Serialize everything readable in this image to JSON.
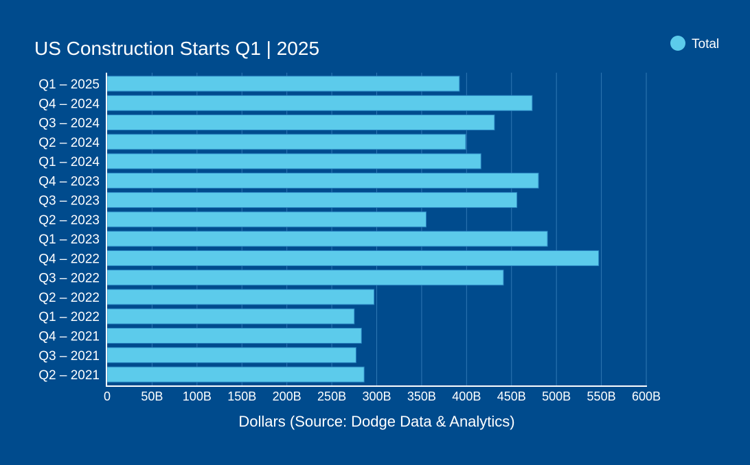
{
  "colors": {
    "background": "#004b8d",
    "bar": "#5ccbeb",
    "bar_outline": "#2b86c2",
    "text": "#ffffff",
    "grid": "#2f78b4",
    "axis": "#ffffff"
  },
  "chart_data": {
    "type": "bar",
    "orientation": "horizontal",
    "title": "US Construction Starts Q1 | 2025",
    "xlabel": "Dollars (Source: Dodge Data & Analytics)",
    "ylabel": "",
    "legend": {
      "position": "top-right",
      "entries": [
        "Total"
      ]
    },
    "grid": true,
    "xlim": [
      0,
      600
    ],
    "x_unit": "billions of dollars",
    "x_ticks": [
      0,
      50,
      100,
      150,
      200,
      250,
      300,
      350,
      400,
      450,
      500,
      550,
      600
    ],
    "x_tick_labels": [
      "0",
      "50B",
      "100B",
      "150B",
      "200B",
      "250B",
      "300B",
      "350B",
      "400B",
      "450B",
      "500B",
      "550B",
      "600B"
    ],
    "categories": [
      "Q1 – 2025",
      "Q4 – 2024",
      "Q3 – 2024",
      "Q2 – 2024",
      "Q1 – 2024",
      "Q4 – 2023",
      "Q3 – 2023",
      "Q2 – 2023",
      "Q1 – 2023",
      "Q4 – 2022",
      "Q3 – 2022",
      "Q2 – 2022",
      "Q1 – 2022",
      "Q4 – 2021",
      "Q3 – 2021",
      "Q2 – 2021"
    ],
    "series": [
      {
        "name": "Total",
        "values": [
          392,
          473,
          431,
          399,
          416,
          480,
          456,
          355,
          490,
          547,
          441,
          297,
          275,
          283,
          277,
          286
        ]
      }
    ]
  }
}
